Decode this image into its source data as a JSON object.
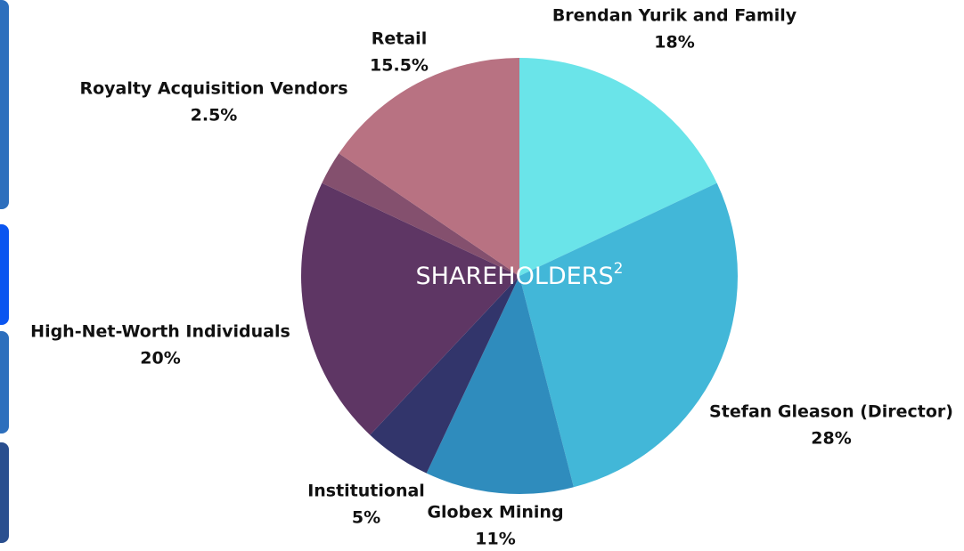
{
  "chart_data": {
    "type": "pie",
    "title": "SHAREHOLDERS",
    "title_note": "2",
    "categories": [
      "Brendan Yurik and Family",
      "Stefan Gleason (Director)",
      "Globex Mining",
      "Institutional",
      "High-Net-Worth Individuals",
      "Royalty Acquisition Vendors",
      "Retail"
    ],
    "values": [
      18,
      28,
      11,
      5,
      20,
      2.5,
      15.5
    ],
    "value_labels": [
      "18%",
      "28%",
      "11%",
      "5%",
      "20%",
      "2.5%",
      "15.5%"
    ],
    "colors": [
      "#6ae4e9",
      "#42b7d8",
      "#2f8cbd",
      "#32356b",
      "#5e3664",
      "#84506e",
      "#b87282"
    ]
  }
}
